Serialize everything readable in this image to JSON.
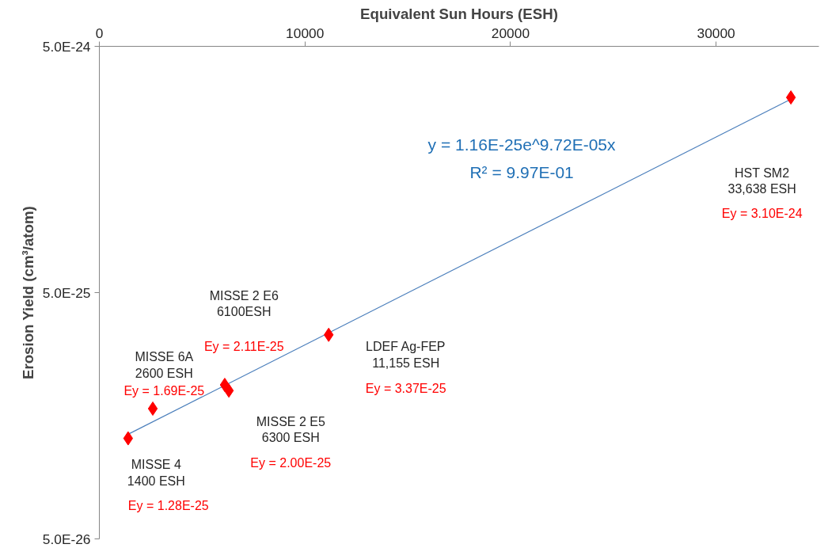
{
  "chart_data": {
    "type": "scatter",
    "xlabel": "Equivalent Sun Hours (ESH)",
    "ylabel": "Erosion Yield (cm³/atom)",
    "log": "y",
    "grid": false,
    "marker": "diamond",
    "xlim": [
      0,
      35000
    ],
    "xticks": [
      0,
      10000,
      20000,
      30000
    ],
    "ylim": [
      5e-26,
      5e-24
    ],
    "yticks": [
      {
        "value": 5e-26,
        "label": "5.0E-26"
      },
      {
        "value": 5e-25,
        "label": "5.0E-25"
      },
      {
        "value": 5e-24,
        "label": "5.0E-24"
      }
    ],
    "series": [
      {
        "type": "line",
        "color": "#4a7ebb",
        "x": [
          1400,
          33638
        ],
        "values": [
          1.33e-25,
          3.05e-24
        ],
        "line_style": "solid",
        "marker": "none"
      },
      {
        "color": "#ff0000",
        "x": [
          1400,
          2600,
          6100,
          6300,
          11155,
          33638
        ],
        "values": [
          1.28e-25,
          1.69e-25,
          2.11e-25,
          2e-25,
          3.37e-25,
          3.1e-24
        ]
      }
    ],
    "annotations": [
      "MISSE 4\n1400 ESH",
      "Ey = 1.28E-25",
      "MISSE 6A\n2600 ESH",
      "Ey = 1.69E-25",
      "MISSE 2 E6\n6100ESH",
      "Ey = 2.11E-25",
      "MISSE 2 E5\n6300 ESH",
      "Ey = 2.00E-25",
      "LDEF Ag-FEP\n11,155 ESH",
      "Ey = 3.37E-25",
      "HST SM2\n33,638 ESH",
      "Ey = 3.10E-24",
      "y = 1.16E-25e^9.72E-05x",
      "R² = 9.97E-01"
    ]
  }
}
